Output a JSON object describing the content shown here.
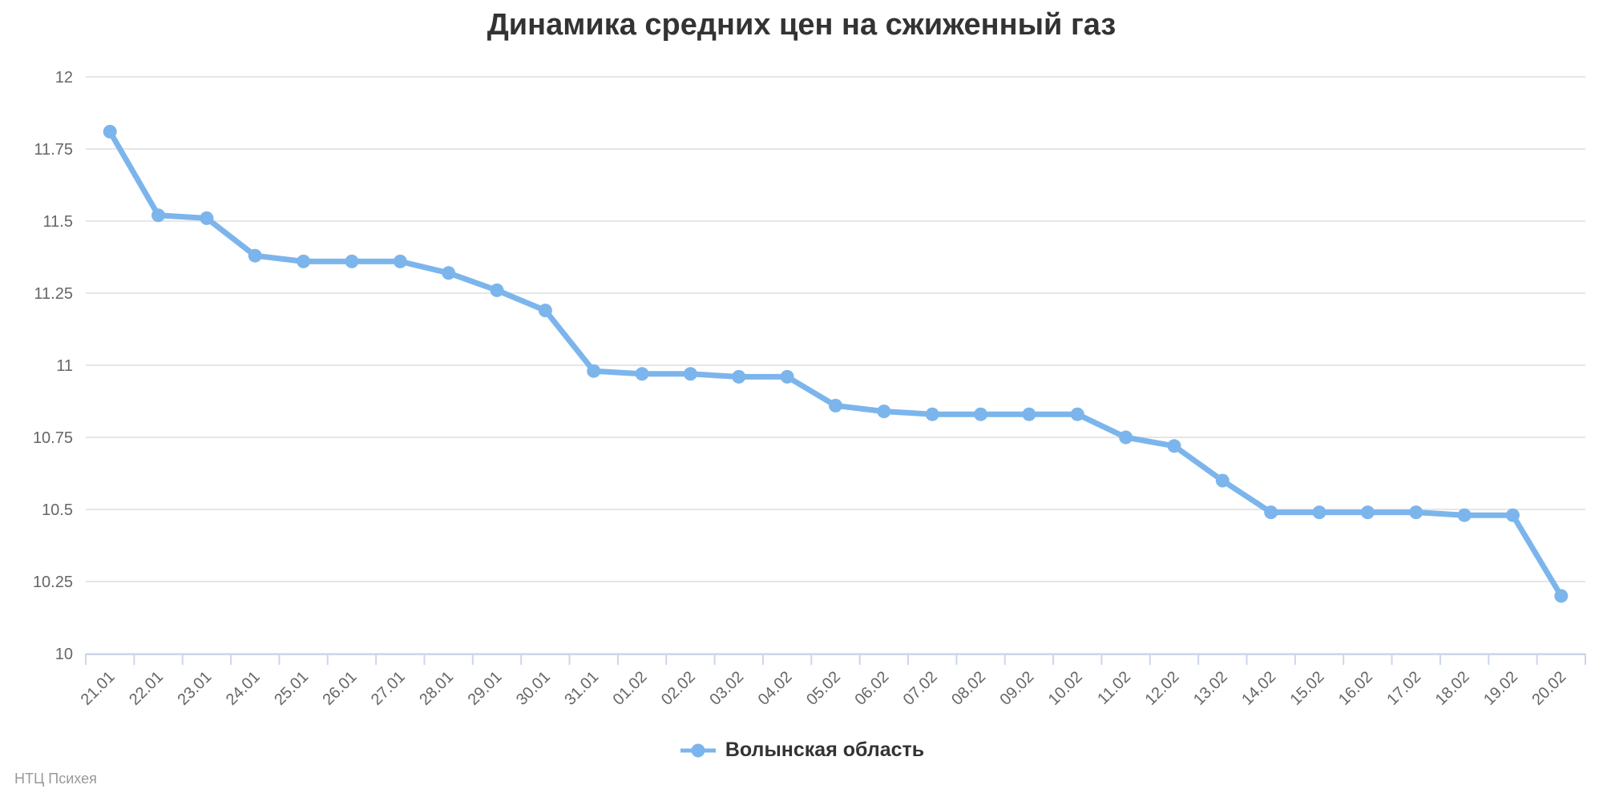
{
  "title": "Динамика средних цен на сжиженный газ",
  "credits": {
    "text": "НТЦ Психея"
  },
  "legend": {
    "series_label": "Волынская область"
  },
  "chart_data": {
    "type": "line",
    "title": "Динамика средних цен на сжиженный газ",
    "categories": [
      "21.01",
      "22.01",
      "23.01",
      "24.01",
      "25.01",
      "26.01",
      "27.01",
      "28.01",
      "29.01",
      "30.01",
      "31.01",
      "01.02",
      "02.02",
      "03.02",
      "04.02",
      "05.02",
      "06.02",
      "07.02",
      "08.02",
      "09.02",
      "10.02",
      "11.02",
      "12.02",
      "13.02",
      "14.02",
      "15.02",
      "16.02",
      "17.02",
      "18.02",
      "19.02",
      "20.02"
    ],
    "series": [
      {
        "name": "Волынская область",
        "color": "#7cb5ec",
        "values": [
          11.81,
          11.52,
          11.51,
          11.38,
          11.36,
          11.36,
          11.36,
          11.32,
          11.26,
          11.19,
          10.98,
          10.97,
          10.97,
          10.96,
          10.96,
          10.86,
          10.84,
          10.83,
          10.83,
          10.83,
          10.83,
          10.75,
          10.72,
          10.6,
          10.49,
          10.49,
          10.49,
          10.49,
          10.48,
          10.48,
          10.2
        ]
      }
    ],
    "xlabel": "",
    "ylabel": "",
    "ylim": [
      10,
      12
    ],
    "yticks": [
      10,
      10.25,
      10.5,
      10.75,
      11,
      11.25,
      11.5,
      11.75,
      12
    ],
    "grid": true,
    "legend_position": "bottom",
    "colors": {
      "series": "#7cb5ec",
      "gridline": "#e6e6e6",
      "axis_line": "#ccd6eb",
      "tick_label": "#666666",
      "title": "#333333",
      "legend_text": "#333333",
      "credit_text": "#999999"
    }
  }
}
